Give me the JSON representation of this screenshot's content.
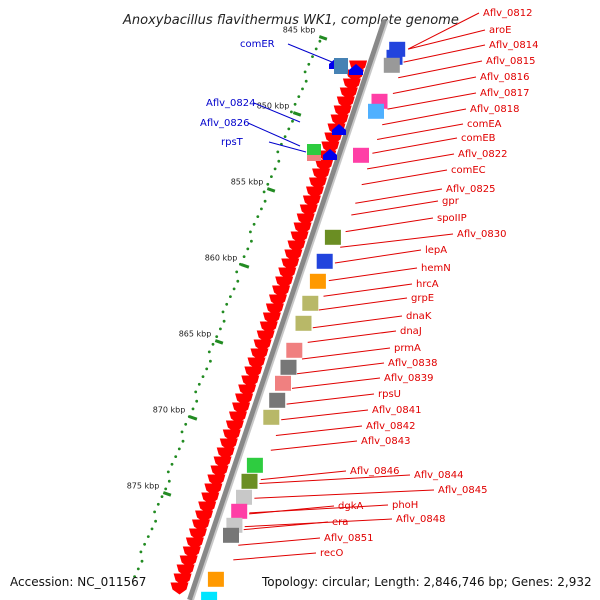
{
  "title": "Anoxybacillus flavithermus WK1, complete genome",
  "footer": {
    "accession": "Accession: NC_011567",
    "topology": "Topology: circular; Length: 2,846,746 bp; Genes: 2,932"
  },
  "scale_ticks": [
    "845 kbp",
    "850 kbp",
    "855 kbp",
    "860 kbp",
    "865 kbp",
    "870 kbp",
    "875 kbp"
  ],
  "colors": {
    "forward_gene": "#ff0000",
    "reverse_gene": "#0000ee",
    "backbone": "#888888",
    "gc_dots": "#228b22",
    "label_red": "#e00000",
    "label_blue": "#0000cc"
  },
  "genes_right": [
    "Aflv_0812",
    "aroE",
    "Aflv_0814",
    "Aflv_0815",
    "Aflv_0816",
    "Aflv_0817",
    "Aflv_0818",
    "comEA",
    "comEB",
    "Aflv_0822",
    "comEC",
    "Aflv_0825",
    "gpr",
    "spoIIP",
    "Aflv_0830",
    "lepA",
    "hemN",
    "hrcA",
    "grpE",
    "dnaK",
    "dnaJ",
    "prmA",
    "Aflv_0838",
    "Aflv_0839",
    "rpsU",
    "Aflv_0841",
    "Aflv_0842",
    "Aflv_0843",
    "Aflv_0844",
    "Aflv_0845",
    "Aflv_0846",
    "phoH",
    "Aflv_0848",
    "dgkA",
    "era",
    "Aflv_0851",
    "recO"
  ],
  "genes_left": [
    "comER",
    "Aflv_0824",
    "Aflv_0826",
    "rpsT"
  ]
}
